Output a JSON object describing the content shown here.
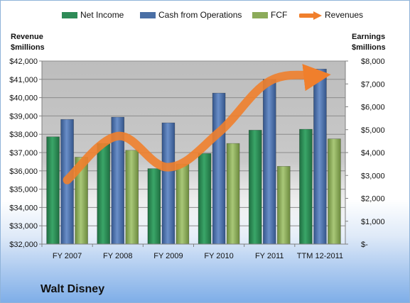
{
  "chart_data": {
    "type": "bar",
    "categories": [
      "FY 2007",
      "FY 2008",
      "FY 2009",
      "FY 2010",
      "FY 2011",
      "TTM 12-2011"
    ],
    "series": [
      {
        "name": "Net Income",
        "axis": "right",
        "kind": "bar",
        "color": "#2e8b57",
        "values": [
          4690,
          4400,
          3300,
          3960,
          4980,
          5020
        ]
      },
      {
        "name": "Cash from Operations",
        "axis": "right",
        "kind": "bar",
        "color": "#4a6fa5",
        "values": [
          5450,
          5550,
          5300,
          6600,
          7200,
          7650
        ]
      },
      {
        "name": "FCF",
        "axis": "right",
        "kind": "bar",
        "color": "#8cab5a",
        "values": [
          3800,
          4100,
          3500,
          4400,
          3400,
          4600
        ]
      },
      {
        "name": "Revenues",
        "axis": "left",
        "kind": "line",
        "color": "#f07f2c",
        "values": [
          35500,
          37900,
          36200,
          38100,
          40900,
          41200
        ]
      }
    ],
    "left_axis": {
      "title_lines": [
        "Revenue",
        "$millions"
      ],
      "min": 32000,
      "max": 42000,
      "step": 1000,
      "tick_labels": [
        "$32,000",
        "$33,000",
        "$34,000",
        "$35,000",
        "$36,000",
        "$37,000",
        "$38,000",
        "$39,000",
        "$40,000",
        "$41,000",
        "$42,000"
      ]
    },
    "right_axis": {
      "title_lines": [
        "Earnings",
        "$millions"
      ],
      "min": 0,
      "max": 8000,
      "step": 1000,
      "tick_labels": [
        "$-",
        "$1,000",
        "$2,000",
        "$3,000",
        "$4,000",
        "$5,000",
        "$6,000",
        "$7,000",
        "$8,000"
      ]
    },
    "legend_position": "top",
    "grid": true,
    "plot_bg_color": "#c0c0c0",
    "company": "Walt Disney"
  }
}
